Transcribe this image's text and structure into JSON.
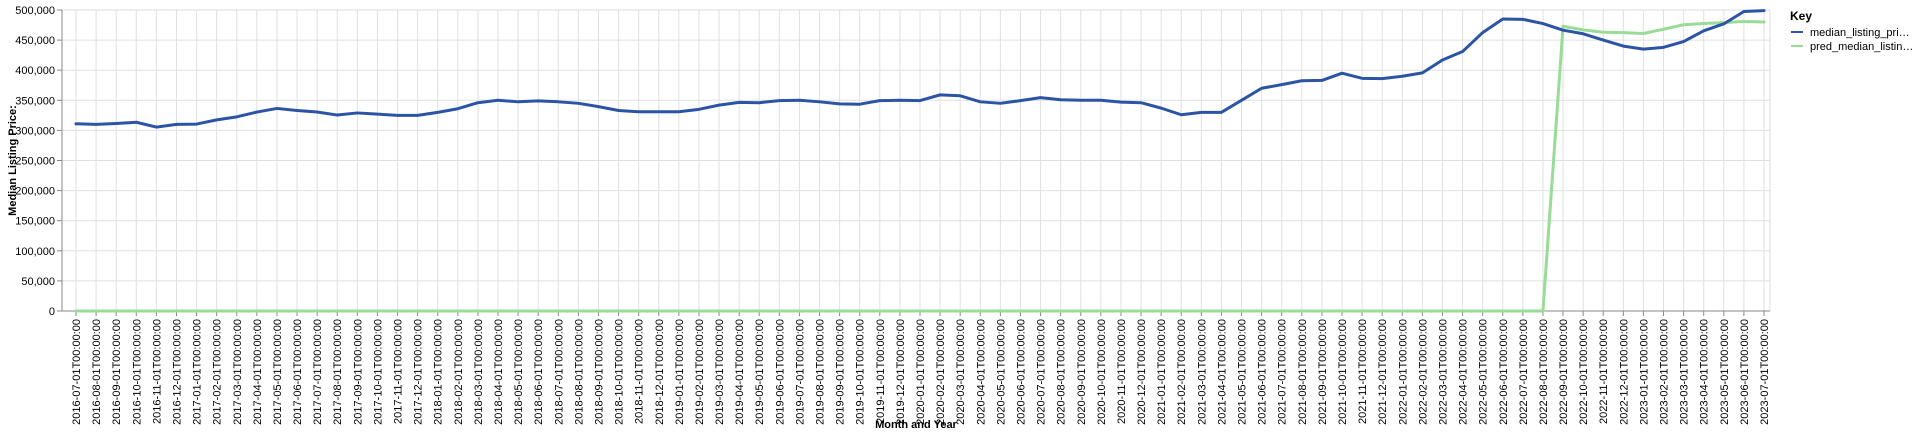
{
  "chart_data": {
    "type": "line",
    "xlabel": "Month and Year",
    "ylabel": "Median Listing Price:",
    "ylim": [
      0,
      500000
    ],
    "y_ticks": [
      "0",
      "50,000",
      "100,000",
      "150,000",
      "200,000",
      "250,000",
      "300,000",
      "350,000",
      "400,000",
      "450,000",
      "500,000"
    ],
    "grid": true,
    "legend_position": "right",
    "legend": {
      "title": "Key",
      "entries": [
        "median_listing_pri…",
        "pred_median_listin…"
      ]
    },
    "categories": [
      "2016-07-01T00:00:00",
      "2016-08-01T00:00:00",
      "2016-09-01T00:00:00",
      "2016-10-01T00:00:00",
      "2016-11-01T00:00:00",
      "2016-12-01T00:00:00",
      "2017-01-01T00:00:00",
      "2017-02-01T00:00:00",
      "2017-03-01T00:00:00",
      "2017-04-01T00:00:00",
      "2017-05-01T00:00:00",
      "2017-06-01T00:00:00",
      "2017-07-01T00:00:00",
      "2017-08-01T00:00:00",
      "2017-09-01T00:00:00",
      "2017-10-01T00:00:00",
      "2017-11-01T00:00:00",
      "2017-12-01T00:00:00",
      "2018-01-01T00:00:00",
      "2018-02-01T00:00:00",
      "2018-03-01T00:00:00",
      "2018-04-01T00:00:00",
      "2018-05-01T00:00:00",
      "2018-06-01T00:00:00",
      "2018-07-01T00:00:00",
      "2018-08-01T00:00:00",
      "2018-09-01T00:00:00",
      "2018-10-01T00:00:00",
      "2018-11-01T00:00:00",
      "2018-12-01T00:00:00",
      "2019-01-01T00:00:00",
      "2019-02-01T00:00:00",
      "2019-03-01T00:00:00",
      "2019-04-01T00:00:00",
      "2019-05-01T00:00:00",
      "2019-06-01T00:00:00",
      "2019-07-01T00:00:00",
      "2019-08-01T00:00:00",
      "2019-09-01T00:00:00",
      "2019-10-01T00:00:00",
      "2019-11-01T00:00:00",
      "2019-12-01T00:00:00",
      "2020-01-01T00:00:00",
      "2020-02-01T00:00:00",
      "2020-03-01T00:00:00",
      "2020-04-01T00:00:00",
      "2020-05-01T00:00:00",
      "2020-06-01T00:00:00",
      "2020-07-01T00:00:00",
      "2020-08-01T00:00:00",
      "2020-09-01T00:00:00",
      "2020-10-01T00:00:00",
      "2020-11-01T00:00:00",
      "2020-12-01T00:00:00",
      "2021-01-01T00:00:00",
      "2021-02-01T00:00:00",
      "2021-03-01T00:00:00",
      "2021-04-01T00:00:00",
      "2021-05-01T00:00:00",
      "2021-06-01T00:00:00",
      "2021-07-01T00:00:00",
      "2021-08-01T00:00:00",
      "2021-09-01T00:00:00",
      "2021-10-01T00:00:00",
      "2021-11-01T00:00:00",
      "2021-12-01T00:00:00",
      "2022-01-01T00:00:00",
      "2022-02-01T00:00:00",
      "2022-03-01T00:00:00",
      "2022-04-01T00:00:00",
      "2022-05-01T00:00:00",
      "2022-06-01T00:00:00",
      "2022-07-01T00:00:00",
      "2022-08-01T00:00:00",
      "2022-09-01T00:00:00",
      "2022-10-01T00:00:00",
      "2022-11-01T00:00:00",
      "2022-12-01T00:00:00",
      "2023-01-01T00:00:00",
      "2023-02-01T00:00:00",
      "2023-03-01T00:00:00",
      "2023-04-01T00:00:00",
      "2023-05-01T00:00:00",
      "2023-06-01T00:00:00",
      "2023-07-01T00:00:00"
    ],
    "series": [
      {
        "name": "median_listing_pri…",
        "color": "#2c54a5",
        "values": [
          311000,
          310000,
          311500,
          313500,
          305500,
          310000,
          310500,
          317500,
          322500,
          330500,
          336500,
          333000,
          330500,
          325500,
          329000,
          327000,
          325000,
          325000,
          330000,
          336000,
          346000,
          350000,
          347500,
          349000,
          347500,
          345000,
          339500,
          333000,
          331000,
          331000,
          331000,
          335000,
          342000,
          346500,
          346000,
          349500,
          350000,
          347500,
          344000,
          343500,
          349500,
          350000,
          349500,
          359000,
          357500,
          347500,
          345000,
          349500,
          354500,
          351000,
          350000,
          350000,
          347000,
          346000,
          337000,
          326000,
          330000,
          330000,
          350000,
          370000,
          376000,
          382500,
          383000,
          395000,
          386500,
          386000,
          390000,
          395500,
          417000,
          431000,
          462500,
          485000,
          484500,
          477500,
          466500,
          460500,
          450000,
          440000,
          435000,
          438000,
          447500,
          465500,
          477000,
          497500,
          499000
        ]
      },
      {
        "name": "pred_median_listin…",
        "color": "#98dc98",
        "values": [
          0,
          0,
          0,
          0,
          0,
          0,
          0,
          0,
          0,
          0,
          0,
          0,
          0,
          0,
          0,
          0,
          0,
          0,
          0,
          0,
          0,
          0,
          0,
          0,
          0,
          0,
          0,
          0,
          0,
          0,
          0,
          0,
          0,
          0,
          0,
          0,
          0,
          0,
          0,
          0,
          0,
          0,
          0,
          0,
          0,
          0,
          0,
          0,
          0,
          0,
          0,
          0,
          0,
          0,
          0,
          0,
          0,
          0,
          0,
          0,
          0,
          0,
          0,
          0,
          0,
          0,
          0,
          0,
          0,
          0,
          0,
          0,
          0,
          0,
          473000,
          467000,
          463000,
          462500,
          461000,
          468000,
          475500,
          477500,
          479000,
          481000,
          480000
        ]
      }
    ]
  }
}
